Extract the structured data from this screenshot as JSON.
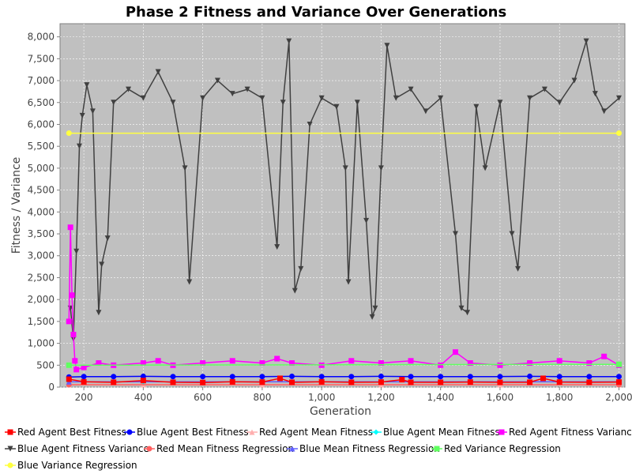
{
  "chart_data": {
    "type": "line",
    "title": "Phase 2 Fitness and Variance Over Generations",
    "xlabel": "Generation",
    "ylabel": "Fitness / Variance",
    "xlim": [
      120,
      2020
    ],
    "ylim": [
      0,
      8300
    ],
    "xticks": [
      200,
      400,
      600,
      800,
      1000,
      1200,
      1400,
      1600,
      1800,
      2000
    ],
    "xtick_labels": [
      "200",
      "400",
      "600",
      "800",
      "1,000",
      "1,200",
      "1,400",
      "1,600",
      "1,800",
      "2,000"
    ],
    "yticks": [
      0,
      500,
      1000,
      1500,
      2000,
      2500,
      3000,
      3500,
      4000,
      4500,
      5000,
      5500,
      6000,
      6500,
      7000,
      7500,
      8000
    ],
    "ytick_labels": [
      "0",
      "500",
      "1,000",
      "1,500",
      "2,000",
      "2,500",
      "3,000",
      "3,500",
      "4,000",
      "4,500",
      "5,000",
      "5,500",
      "6,000",
      "6,500",
      "7,000",
      "7,500",
      "8,000"
    ],
    "grid": true,
    "legend_position": "bottom",
    "background": "#c0c0c0",
    "series": [
      {
        "name": "Red Agent Best Fitness",
        "color": "#ff0000",
        "marker": "square",
        "x": [
          150,
          200,
          300,
          400,
          500,
          600,
          700,
          800,
          860,
          900,
          1000,
          1100,
          1200,
          1270,
          1300,
          1400,
          1500,
          1600,
          1700,
          1745,
          1800,
          1900,
          2000
        ],
        "y": [
          180,
          120,
          110,
          150,
          110,
          105,
          120,
          115,
          200,
          110,
          120,
          110,
          115,
          170,
          110,
          110,
          115,
          110,
          110,
          200,
          115,
          110,
          115
        ]
      },
      {
        "name": "Blue Agent Best Fitness",
        "color": "#0000ff",
        "marker": "circle",
        "x": [
          150,
          200,
          300,
          400,
          500,
          600,
          700,
          800,
          900,
          1000,
          1100,
          1200,
          1300,
          1400,
          1500,
          1600,
          1700,
          1800,
          1900,
          2000
        ],
        "y": [
          230,
          240,
          240,
          245,
          240,
          240,
          240,
          240,
          245,
          240,
          240,
          245,
          240,
          240,
          240,
          240,
          245,
          240,
          240,
          240
        ]
      },
      {
        "name": "Red Agent Mean Fitness",
        "color": "#ffafaf",
        "marker": "triangle-up",
        "x": [
          150,
          400,
          800,
          1200,
          1600,
          2000
        ],
        "y": [
          60,
          55,
          55,
          55,
          55,
          55
        ]
      },
      {
        "name": "Blue Agent Mean Fitness",
        "color": "#00ffff",
        "marker": "diamond",
        "x": [
          150,
          400,
          800,
          1200,
          1600,
          2000
        ],
        "y": [
          120,
          120,
          120,
          120,
          120,
          120
        ]
      },
      {
        "name": "Red Agent Fitness Variance",
        "color": "#ff00ff",
        "marker": "square",
        "x": [
          150,
          155,
          160,
          165,
          170,
          175,
          200,
          250,
          300,
          400,
          450,
          500,
          600,
          700,
          800,
          850,
          900,
          1000,
          1100,
          1200,
          1300,
          1400,
          1450,
          1500,
          1600,
          1700,
          1800,
          1900,
          1950,
          2000
        ],
        "y": [
          1500,
          3650,
          2100,
          1200,
          600,
          400,
          450,
          550,
          500,
          550,
          600,
          500,
          550,
          600,
          550,
          650,
          550,
          500,
          600,
          550,
          600,
          500,
          800,
          550,
          500,
          550,
          600,
          550,
          700,
          500
        ]
      },
      {
        "name": "Blue Agent Fitness Variance",
        "color": "#404040",
        "marker": "triangle-down",
        "x": [
          155,
          165,
          175,
          185,
          195,
          210,
          230,
          250,
          260,
          280,
          300,
          350,
          400,
          450,
          500,
          540,
          555,
          600,
          650,
          700,
          750,
          800,
          850,
          870,
          890,
          910,
          930,
          960,
          1000,
          1050,
          1080,
          1090,
          1120,
          1150,
          1170,
          1180,
          1200,
          1220,
          1250,
          1300,
          1350,
          1400,
          1450,
          1470,
          1490,
          1520,
          1550,
          1600,
          1640,
          1660,
          1700,
          1750,
          1800,
          1850,
          1890,
          1920,
          1950,
          2000
        ],
        "y": [
          1800,
          1100,
          3100,
          5500,
          6200,
          6900,
          6300,
          1700,
          2800,
          3400,
          6500,
          6800,
          6600,
          7200,
          6500,
          5000,
          2400,
          6600,
          7000,
          6700,
          6800,
          6600,
          3200,
          6500,
          7900,
          2200,
          2700,
          6000,
          6600,
          6400,
          5000,
          2400,
          6500,
          3800,
          1600,
          1800,
          5000,
          7800,
          6600,
          6800,
          6300,
          6600,
          3500,
          1800,
          1700,
          6400,
          5000,
          6500,
          3500,
          2700,
          6600,
          6800,
          6500,
          7000,
          7900,
          6700,
          6300,
          6600
        ]
      },
      {
        "name": "Red Mean Fitness Regression",
        "color": "#ff6060",
        "marker": "circle",
        "x": [
          150,
          2000
        ],
        "y": [
          55,
          55
        ]
      },
      {
        "name": "Blue Mean Fitness Regression",
        "color": "#6060ff",
        "marker": "triangle-up",
        "x": [
          150,
          2000
        ],
        "y": [
          120,
          120
        ]
      },
      {
        "name": "Red Variance Regression",
        "color": "#60ff60",
        "marker": "square",
        "x": [
          150,
          2000
        ],
        "y": [
          500,
          520
        ]
      },
      {
        "name": "Blue Variance Regression",
        "color": "#ffff40",
        "marker": "circle",
        "x": [
          150,
          2000
        ],
        "y": [
          5800,
          5800
        ]
      }
    ]
  }
}
